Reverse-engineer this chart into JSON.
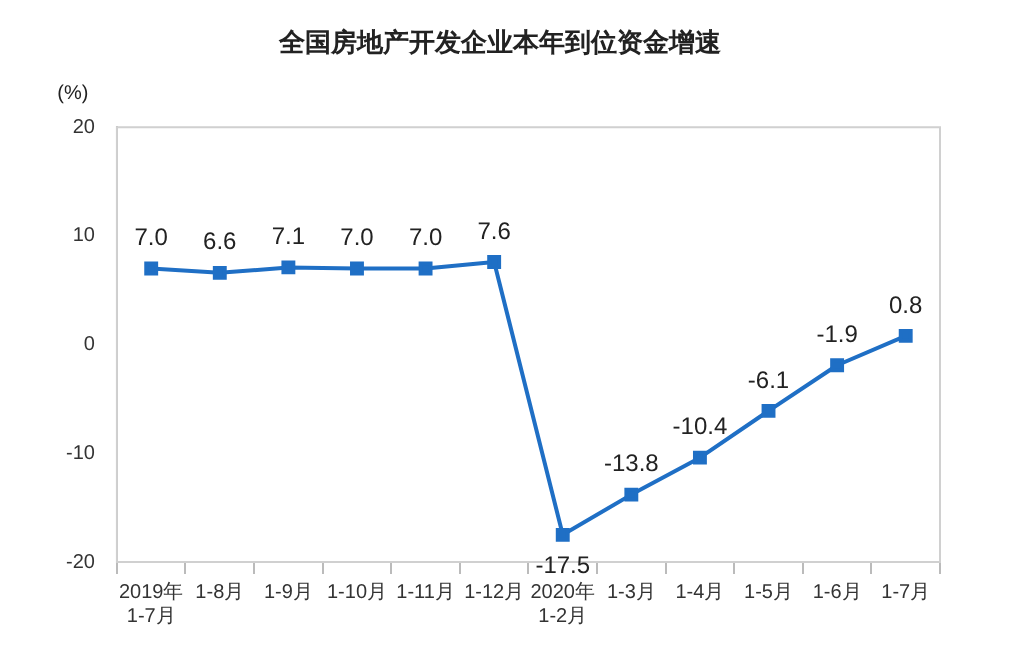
{
  "chart_data": {
    "type": "line",
    "title": "全国房地产开发企业本年到位资金增速",
    "ylabel": "(%)",
    "categories": [
      "2019年\n1-7月",
      "1-8月",
      "1-9月",
      "1-10月",
      "1-11月",
      "1-12月",
      "2020年\n1-2月",
      "1-3月",
      "1-4月",
      "1-5月",
      "1-6月",
      "1-7月"
    ],
    "series": [
      {
        "color": "#1f6fc5",
        "values": [
          7.0,
          6.6,
          7.1,
          7.0,
          7.0,
          7.6,
          -17.5,
          -13.8,
          -10.4,
          -6.1,
          -1.9,
          0.8
        ],
        "value_labels": [
          "7.0",
          "6.6",
          "7.1",
          "7.0",
          "7.0",
          "7.6",
          "-17.5",
          "-13.8",
          "-10.4",
          "-6.1",
          "-1.9",
          "0.8"
        ]
      }
    ],
    "ylim": [
      -20,
      20
    ],
    "yticks": [
      -20,
      -10,
      0,
      10,
      20
    ],
    "grid": false,
    "legend": false,
    "marker": "square",
    "line_style": "solid"
  }
}
